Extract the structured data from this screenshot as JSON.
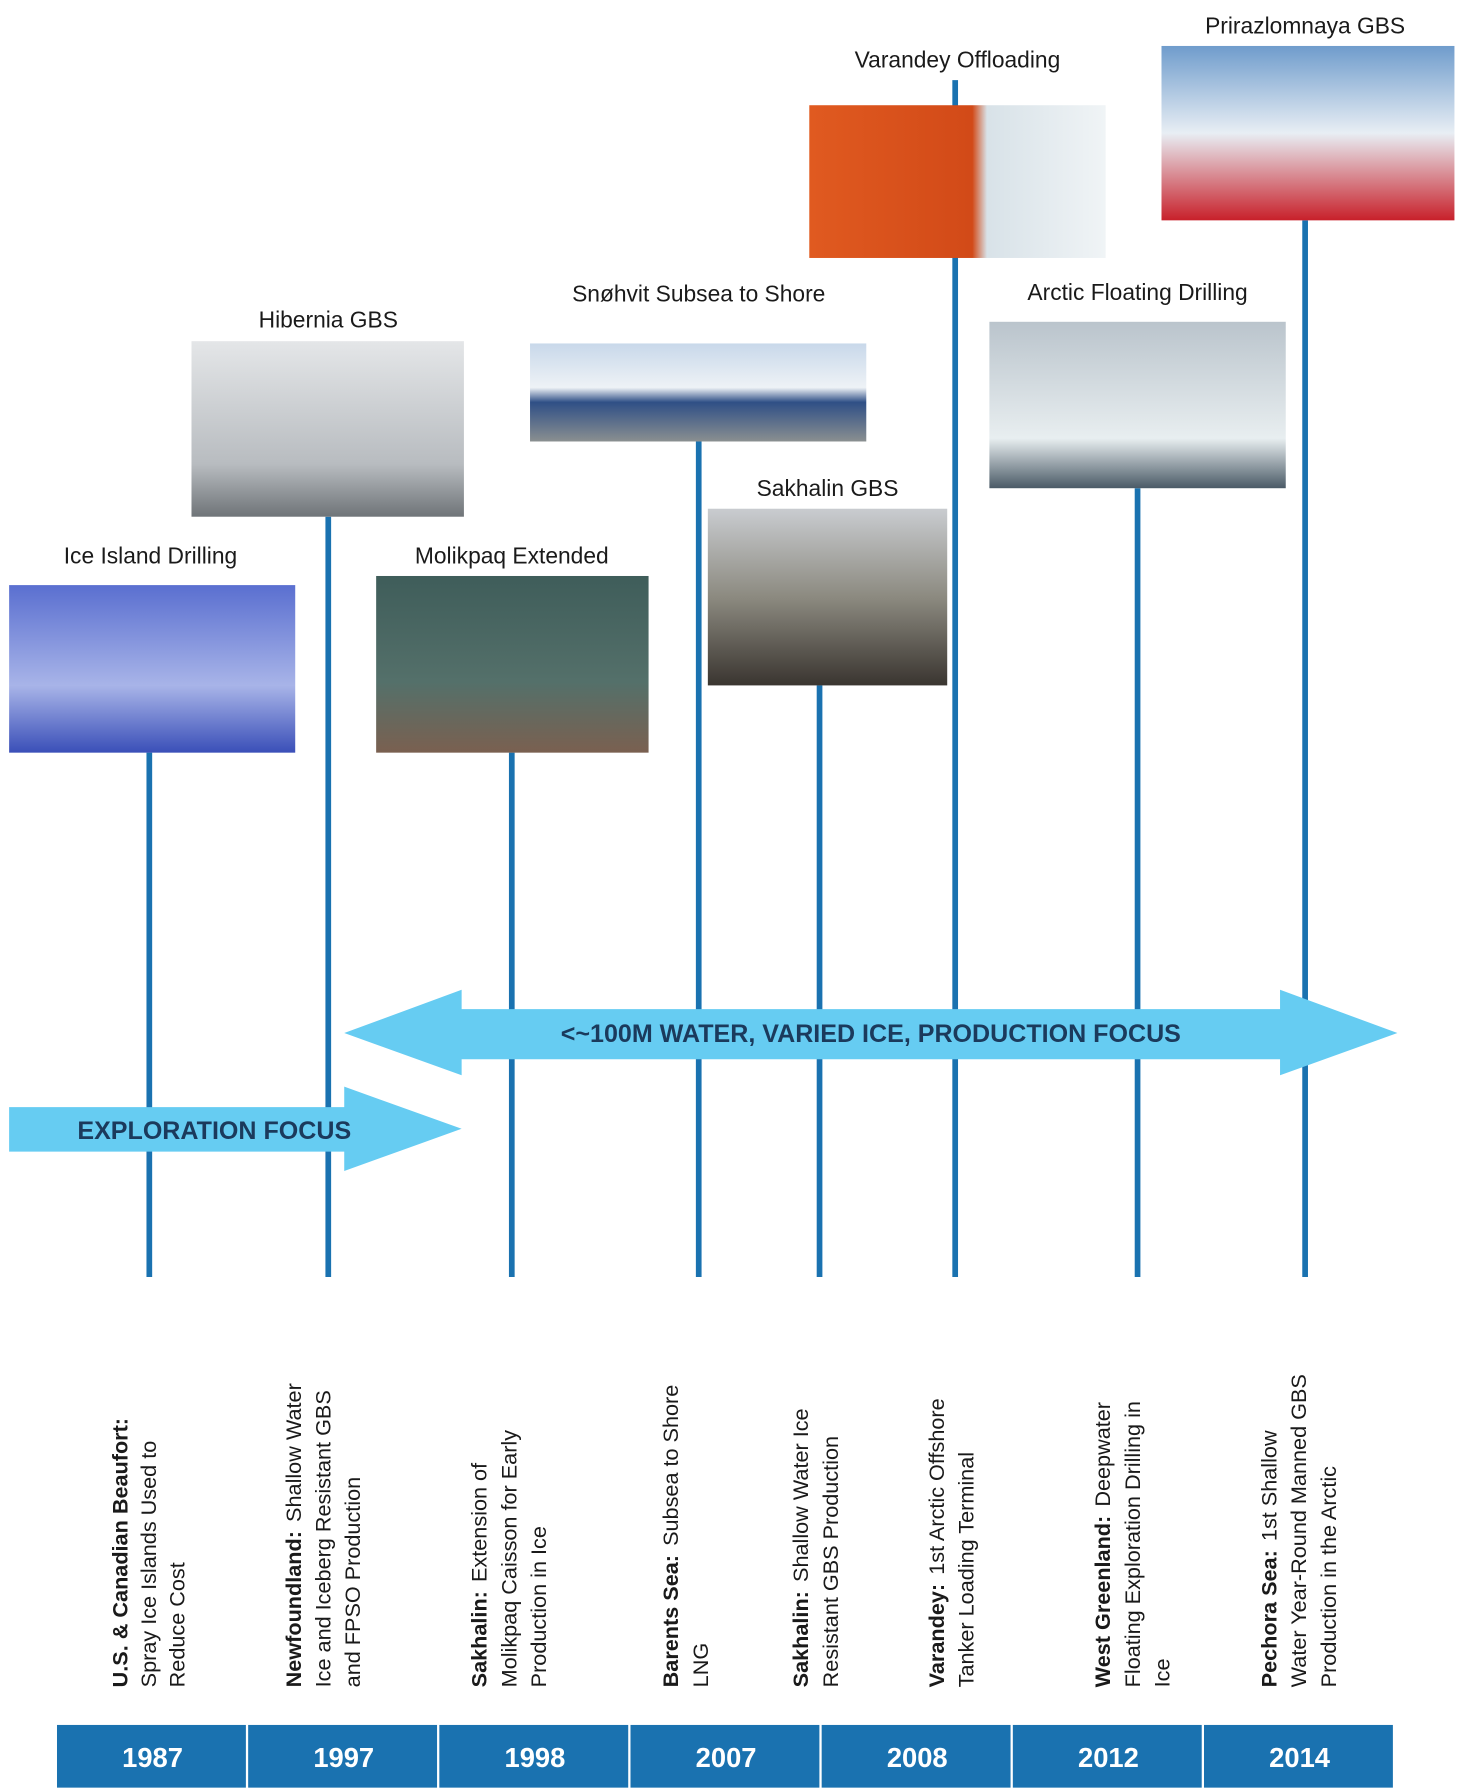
{
  "photos": [
    {
      "label": "Ice Island Drilling"
    },
    {
      "label": "Hibernia GBS"
    },
    {
      "label": "Molikpaq Extended"
    },
    {
      "label": "Snøhvit Subsea to Shore"
    },
    {
      "label": "Sakhalin GBS"
    },
    {
      "label": "Varandey Offloading"
    },
    {
      "label": "Arctic Floating Drilling"
    },
    {
      "label": "Prirazlomnaya GBS"
    }
  ],
  "banners": {
    "production": "<~100M WATER, VARIED ICE, PRODUCTION FOCUS",
    "exploration": "EXPLORATION FOCUS"
  },
  "descriptions": [
    {
      "lead": "U.S. & Canadian Beaufort:",
      "lines": [
        "Spray Ice Islands Used to",
        "Reduce Cost"
      ]
    },
    {
      "lead": "Newfoundland:",
      "first": "Shallow Water",
      "lines": [
        "Ice and Iceberg Resistant GBS",
        "and FPSO Production"
      ]
    },
    {
      "lead": "Sakhalin:",
      "first": "Extension of",
      "lines": [
        "Molikpaq Caisson for Early",
        "Production in Ice"
      ]
    },
    {
      "lead": "Barents Sea:",
      "first": "Subsea to Shore",
      "lines": [
        "LNG"
      ]
    },
    {
      "lead": "Sakhalin:",
      "first": "Shallow Water Ice",
      "lines": [
        "Resistant GBS Production"
      ]
    },
    {
      "lead": "Varandey:",
      "first": "1st Arctic Offshore",
      "lines": [
        "Tanker Loading Terminal"
      ]
    },
    {
      "lead": "West Greenland:",
      "first": "Deepwater",
      "lines": [
        "Floating Exploration Drilling in",
        "Ice"
      ]
    },
    {
      "lead": "Pechora Sea:",
      "first": "1st Shallow",
      "lines": [
        "Water Year-Round Manned GBS",
        "Production in the Arctic"
      ]
    }
  ],
  "years": [
    "1987",
    "1997",
    "1998",
    "2007",
    "2008",
    "2012",
    "2014"
  ]
}
